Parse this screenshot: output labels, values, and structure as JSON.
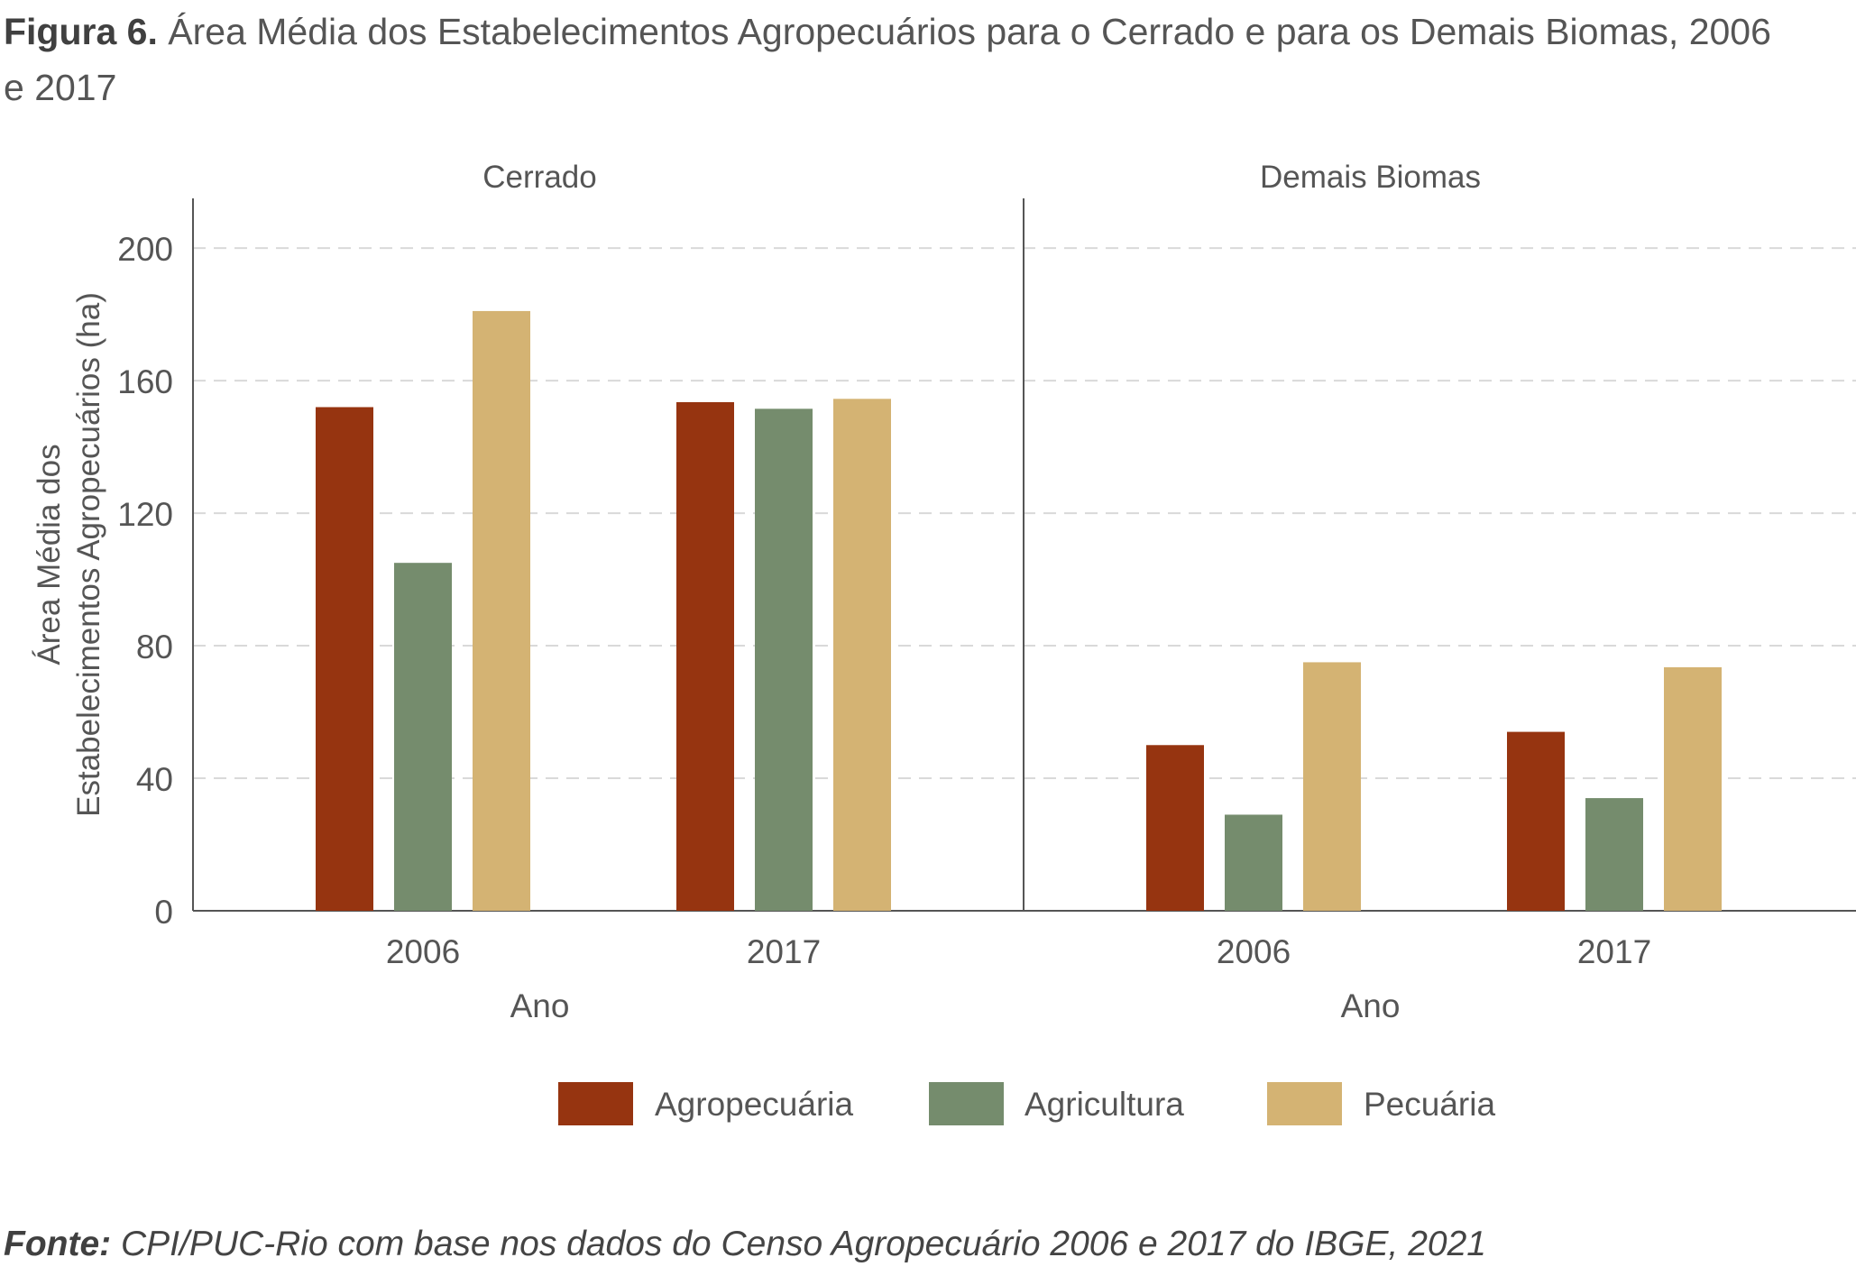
{
  "title": {
    "bold": "Figura 6.",
    "text": "Área Média dos Estabelecimentos Agropecuários para o Cerrado e para os Demais Biomas, 2006 e 2017"
  },
  "source": {
    "label": "Fonte:",
    "text": "CPI/PUC-Rio com base nos dados do Censo Agropecuário 2006 e 2017 do IBGE, 2021"
  },
  "chart_data": {
    "type": "bar",
    "ylabel": "Área Média dos Estabelecimentos Agropecuários (ha)",
    "ylabel_lines": [
      "Área Média dos",
      "Estabelecimentos Agropecuários (ha)"
    ],
    "xlabel": "Ano",
    "ylim": [
      0,
      215
    ],
    "yticks": [
      0,
      40,
      80,
      120,
      160,
      200
    ],
    "grid": true,
    "legend_position": "bottom",
    "series_names": [
      "Agropecuária",
      "Agricultura",
      "Pecuária"
    ],
    "colors": [
      "#963410",
      "#758c6d",
      "#d4b373"
    ],
    "categories": [
      "2006",
      "2017"
    ],
    "panels": [
      {
        "name": "Cerrado",
        "series": [
          {
            "name": "Agropecuária",
            "values": [
              152,
              153.5
            ]
          },
          {
            "name": "Agricultura",
            "values": [
              105,
              151.5
            ]
          },
          {
            "name": "Pecuária",
            "values": [
              181,
              154.5
            ]
          }
        ]
      },
      {
        "name": "Demais Biomas",
        "series": [
          {
            "name": "Agropecuária",
            "values": [
              50,
              54
            ]
          },
          {
            "name": "Agricultura",
            "values": [
              29,
              34
            ]
          },
          {
            "name": "Pecuária",
            "values": [
              75,
              73.5
            ]
          }
        ]
      }
    ]
  }
}
